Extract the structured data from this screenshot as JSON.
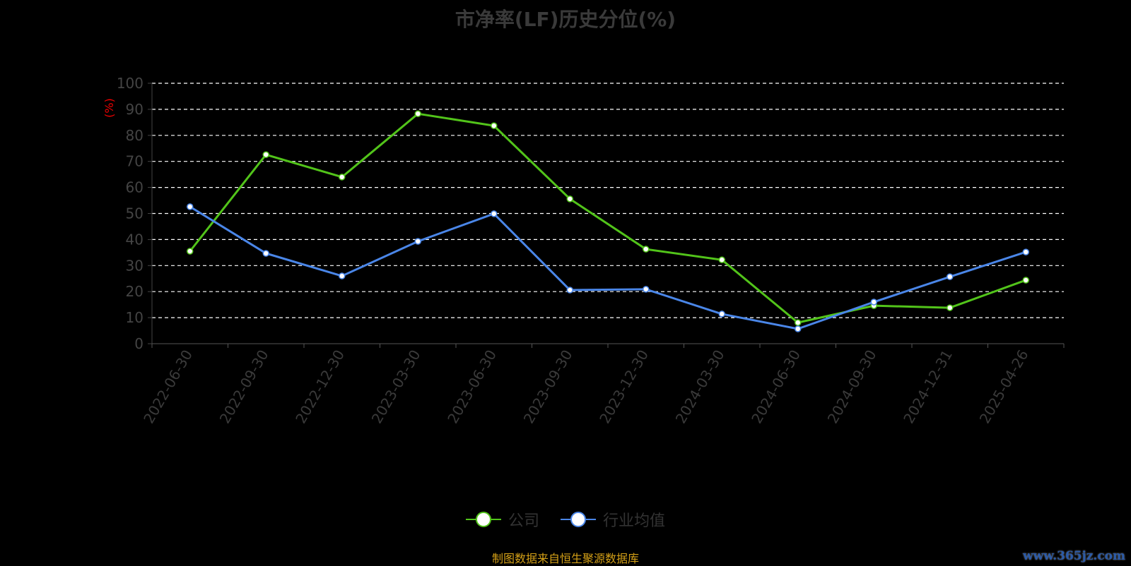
{
  "chart_data": {
    "type": "line",
    "title": "市净率(LF)历史分位(%)",
    "ylabel": "(%)",
    "ylim": [
      0,
      100
    ],
    "yticks": [
      0,
      10,
      20,
      30,
      40,
      50,
      60,
      70,
      80,
      90,
      100
    ],
    "grid": true,
    "legend_placement": "bottom",
    "categories": [
      "2022-06-30",
      "2022-09-30",
      "2022-12-30",
      "2023-03-30",
      "2023-06-30",
      "2023-09-30",
      "2023-12-30",
      "2024-03-30",
      "2024-06-30",
      "2024-09-30",
      "2024-12-31",
      "2025-04-26"
    ],
    "series": [
      {
        "name": "公司",
        "color": "#52c41a",
        "values": [
          35.5,
          72.6,
          64.0,
          88.3,
          83.7,
          55.6,
          36.3,
          32.2,
          8.1,
          14.6,
          13.8,
          24.4
        ]
      },
      {
        "name": "行业均值",
        "color": "#4a86e8",
        "values": [
          52.6,
          34.7,
          26.0,
          39.3,
          49.9,
          20.6,
          20.9,
          11.4,
          5.7,
          16.0,
          25.7,
          35.2
        ]
      }
    ]
  },
  "source": "制图数据来自恒生聚源数据库",
  "watermark": "www.365jz.com"
}
